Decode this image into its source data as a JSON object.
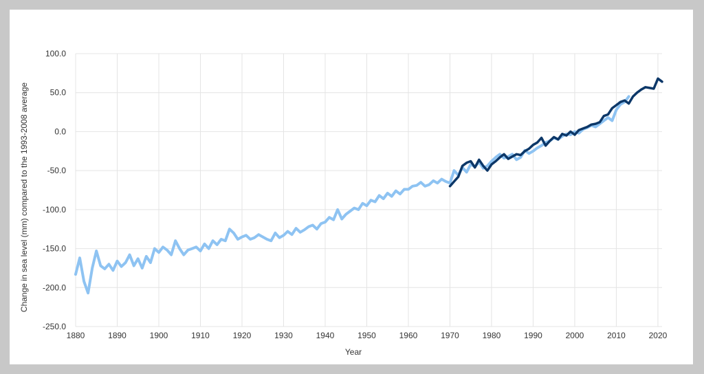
{
  "chart_data": {
    "type": "line",
    "title": "",
    "xlabel": "Year",
    "ylabel": "Change in sea level (mm) compared to the 1993-2008 average",
    "xlim": [
      1880,
      2021
    ],
    "ylim": [
      -250,
      100
    ],
    "x_ticks": [
      1880,
      1890,
      1900,
      1910,
      1920,
      1930,
      1940,
      1950,
      1960,
      1970,
      1980,
      1990,
      2000,
      2010,
      2020
    ],
    "y_ticks": [
      100,
      50,
      0,
      -50,
      -100,
      -150,
      -200,
      -250
    ],
    "x_tick_labels": [
      "1880",
      "1890",
      "1900",
      "1910",
      "1920",
      "1930",
      "1940",
      "1950",
      "1960",
      "1970",
      "1980",
      "1990",
      "2000",
      "2010",
      "2020"
    ],
    "y_tick_labels": [
      "100.0",
      "50.0",
      "0.0",
      "-50.0",
      "-100.0",
      "-150.0",
      "-200.0",
      "-250.0"
    ],
    "grid": true,
    "series": [
      {
        "color": "#8ec3f2",
        "x": [
          1880,
          1881,
          1882,
          1883,
          1884,
          1885,
          1886,
          1887,
          1888,
          1889,
          1890,
          1891,
          1892,
          1893,
          1894,
          1895,
          1896,
          1897,
          1898,
          1899,
          1900,
          1901,
          1902,
          1903,
          1904,
          1905,
          1906,
          1907,
          1908,
          1909,
          1910,
          1911,
          1912,
          1913,
          1914,
          1915,
          1916,
          1917,
          1918,
          1919,
          1920,
          1921,
          1922,
          1923,
          1924,
          1925,
          1926,
          1927,
          1928,
          1929,
          1930,
          1931,
          1932,
          1933,
          1934,
          1935,
          1936,
          1937,
          1938,
          1939,
          1940,
          1941,
          1942,
          1943,
          1944,
          1945,
          1946,
          1947,
          1948,
          1949,
          1950,
          1951,
          1952,
          1953,
          1954,
          1955,
          1956,
          1957,
          1958,
          1959,
          1960,
          1961,
          1962,
          1963,
          1964,
          1965,
          1966,
          1967,
          1968,
          1969,
          1970,
          1971,
          1972,
          1973,
          1974,
          1975,
          1976,
          1977,
          1978,
          1979,
          1980,
          1981,
          1982,
          1983,
          1984,
          1985,
          1986,
          1987,
          1988,
          1989,
          1990,
          1991,
          1992,
          1993,
          1994,
          1995,
          1996,
          1997,
          1998,
          1999,
          2000,
          2001,
          2002,
          2003,
          2004,
          2005,
          2006,
          2007,
          2008,
          2009,
          2010,
          2011,
          2012,
          2013
        ],
        "values": [
          -183,
          -162,
          -192,
          -207,
          -175,
          -153,
          -172,
          -176,
          -170,
          -178,
          -166,
          -173,
          -168,
          -158,
          -172,
          -163,
          -175,
          -160,
          -168,
          -150,
          -155,
          -148,
          -152,
          -158,
          -140,
          -150,
          -158,
          -152,
          -150,
          -148,
          -153,
          -144,
          -150,
          -140,
          -145,
          -138,
          -140,
          -125,
          -130,
          -138,
          -135,
          -133,
          -138,
          -136,
          -132,
          -135,
          -138,
          -140,
          -130,
          -136,
          -133,
          -128,
          -132,
          -124,
          -129,
          -126,
          -122,
          -120,
          -125,
          -118,
          -116,
          -110,
          -113,
          -100,
          -112,
          -106,
          -102,
          -98,
          -100,
          -92,
          -95,
          -88,
          -90,
          -82,
          -86,
          -79,
          -83,
          -76,
          -80,
          -74,
          -74,
          -70,
          -69,
          -65,
          -70,
          -68,
          -63,
          -66,
          -61,
          -64,
          -66,
          -50,
          -56,
          -46,
          -52,
          -42,
          -45,
          -39,
          -47,
          -44,
          -38,
          -33,
          -29,
          -34,
          -32,
          -29,
          -36,
          -33,
          -24,
          -28,
          -25,
          -21,
          -18,
          -14,
          -12,
          -8,
          -10,
          -6,
          -3,
          -4,
          0,
          -2,
          3,
          5,
          8,
          6,
          10,
          14,
          18,
          14,
          28,
          35,
          38,
          45
        ]
      },
      {
        "color": "#0c3768",
        "x": [
          1970,
          1971,
          1972,
          1973,
          1974,
          1975,
          1976,
          1977,
          1978,
          1979,
          1980,
          1981,
          1982,
          1983,
          1984,
          1985,
          1986,
          1987,
          1988,
          1989,
          1990,
          1991,
          1992,
          1993,
          1994,
          1995,
          1996,
          1997,
          1998,
          1999,
          2000,
          2001,
          2002,
          2003,
          2004,
          2005,
          2006,
          2007,
          2008,
          2009,
          2010,
          2011,
          2012,
          2013,
          2014,
          2015,
          2016,
          2017,
          2018,
          2019,
          2020,
          2021
        ],
        "values": [
          -70,
          -64,
          -58,
          -44,
          -40,
          -38,
          -46,
          -36,
          -44,
          -50,
          -42,
          -38,
          -33,
          -29,
          -35,
          -32,
          -29,
          -30,
          -25,
          -22,
          -17,
          -14,
          -8,
          -18,
          -12,
          -7,
          -10,
          -3,
          -5,
          0,
          -4,
          2,
          4,
          6,
          9,
          10,
          12,
          20,
          22,
          30,
          34,
          38,
          40,
          36,
          45,
          50,
          54,
          57,
          56,
          55,
          68,
          64
        ]
      }
    ]
  }
}
